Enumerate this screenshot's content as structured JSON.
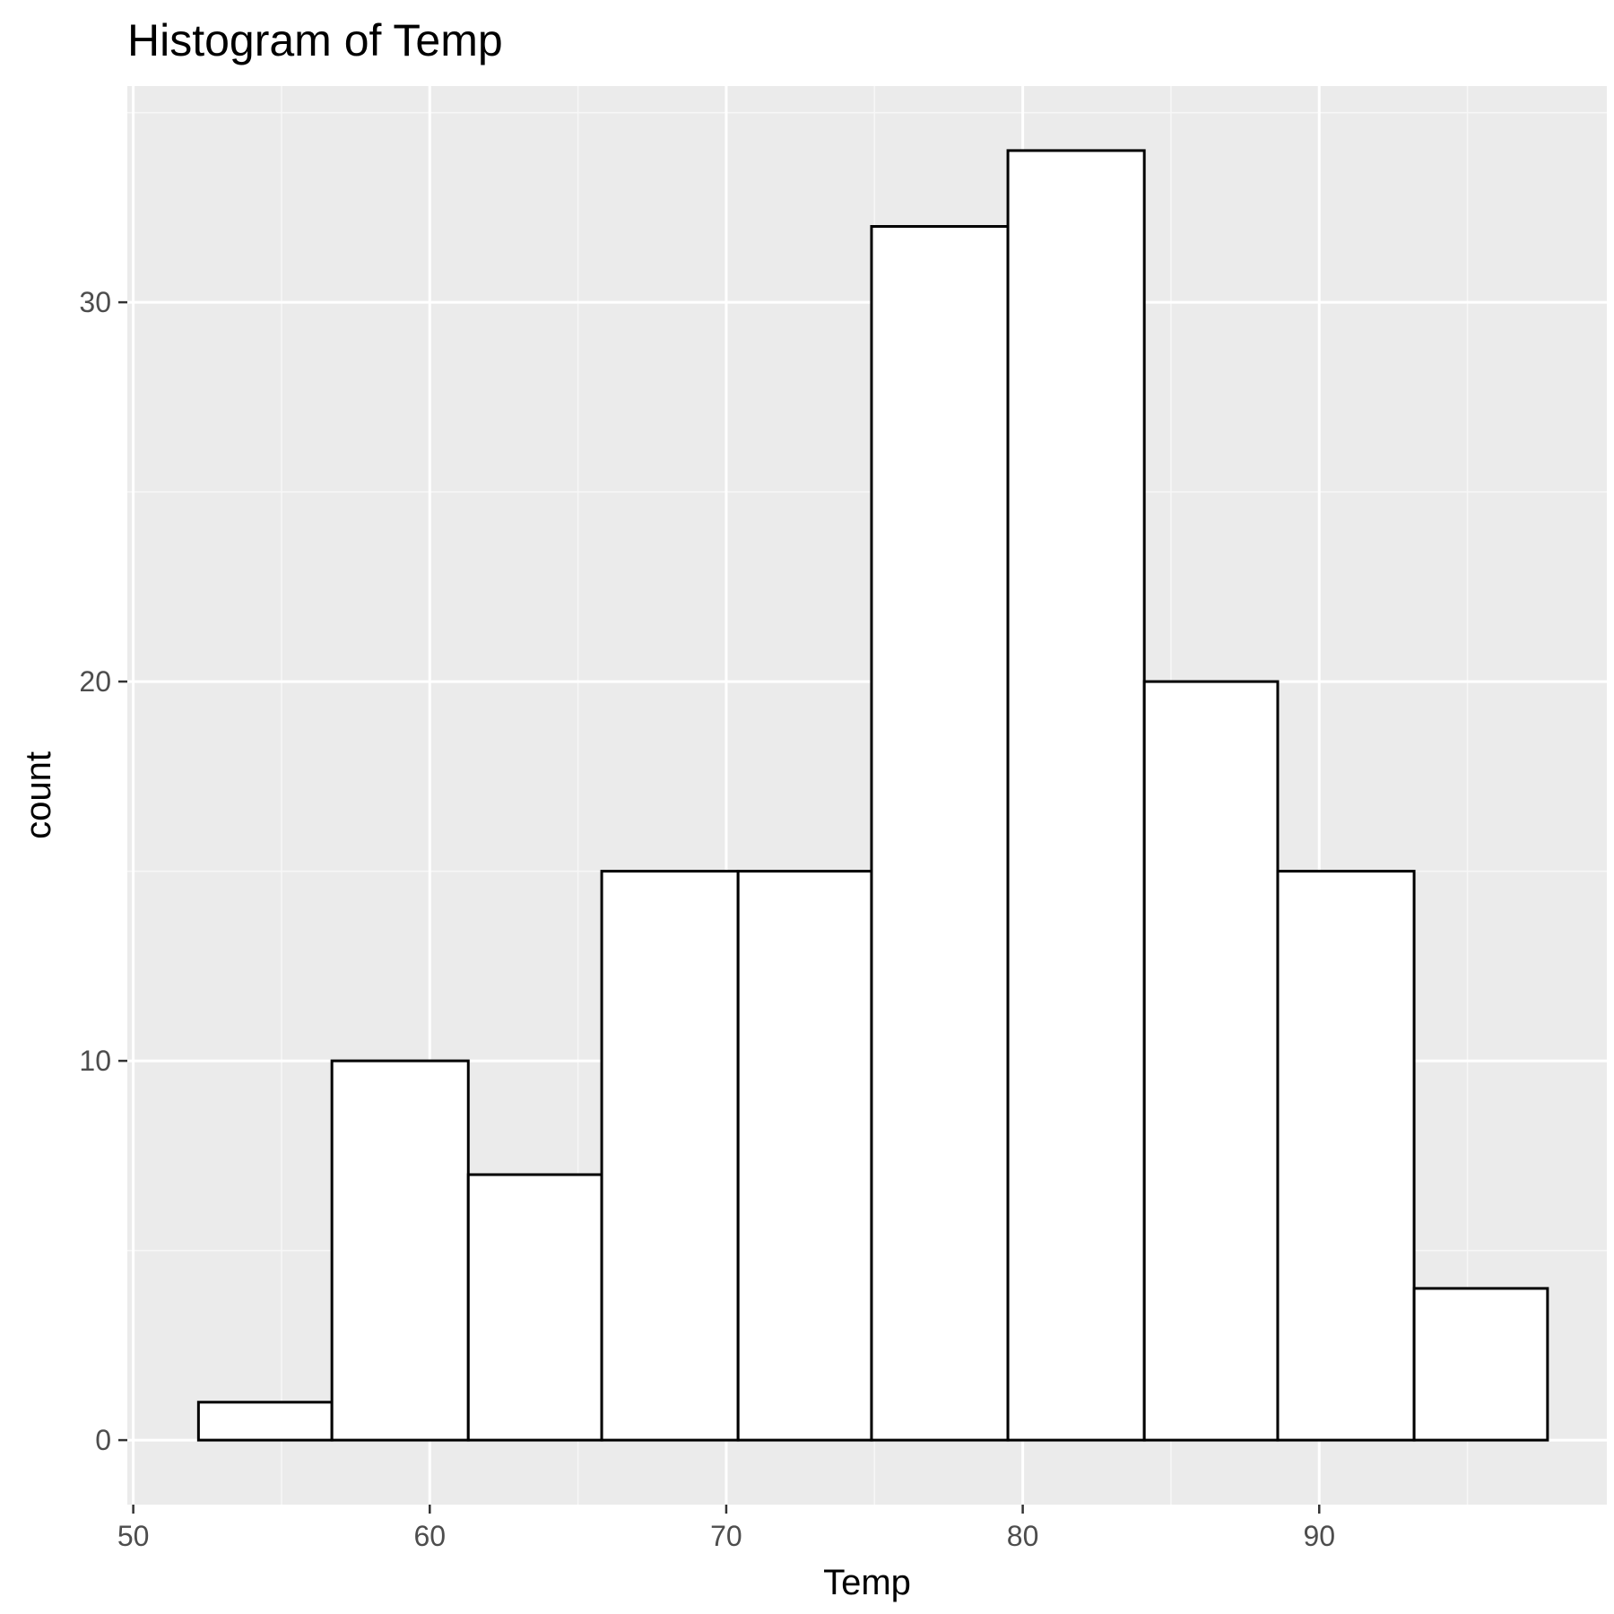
{
  "chart_data": {
    "type": "bar",
    "subtype": "histogram",
    "title": "Histogram of Temp",
    "xlabel": "Temp",
    "ylabel": "count",
    "xlim": [
      49.8,
      99.7
    ],
    "ylim": [
      -1.7,
      35.7
    ],
    "x_ticks": [
      50,
      60,
      70,
      80,
      90
    ],
    "y_ticks": [
      0,
      10,
      20,
      30
    ],
    "x_tick_labels": [
      "50",
      "60",
      "70",
      "80",
      "90"
    ],
    "y_tick_labels": [
      "0",
      "10",
      "20",
      "30"
    ],
    "bins": [
      {
        "x0": 52.2,
        "x1": 56.7,
        "count": 1
      },
      {
        "x0": 56.7,
        "x1": 61.3,
        "count": 10
      },
      {
        "x0": 61.3,
        "x1": 65.8,
        "count": 7
      },
      {
        "x0": 65.8,
        "x1": 70.4,
        "count": 15
      },
      {
        "x0": 70.4,
        "x1": 74.9,
        "count": 15
      },
      {
        "x0": 74.9,
        "x1": 79.5,
        "count": 32
      },
      {
        "x0": 79.5,
        "x1": 84.1,
        "count": 34
      },
      {
        "x0": 84.1,
        "x1": 88.6,
        "count": 20
      },
      {
        "x0": 88.6,
        "x1": 93.2,
        "count": 15
      },
      {
        "x0": 93.2,
        "x1": 97.7,
        "count": 4
      }
    ],
    "grid": true,
    "legend": "none",
    "colors": {
      "panel_background": "#ebebeb",
      "grid_major": "#ffffff",
      "grid_minor": "#f7f7f7",
      "bar_fill": "#ffffff",
      "bar_outline": "#000000",
      "tick_text": "#4d4d4d",
      "tick_mark": "#333333"
    }
  }
}
